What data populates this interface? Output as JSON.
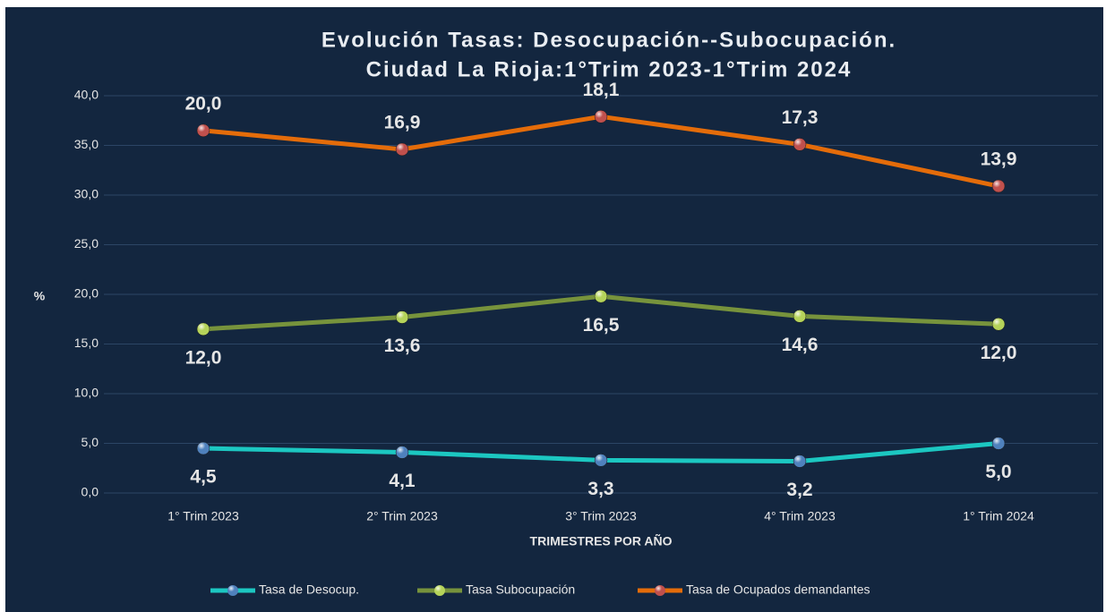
{
  "chart_data": {
    "type": "line",
    "stacked": true,
    "title": [
      "Evolución Tasas: Desocupación--Subocupación.",
      "Ciudad La Rioja:1°Trim 2023-1°Trim 2024"
    ],
    "y_label": "%",
    "x_label": "TRIMESTRES  POR AÑO",
    "categories": [
      "1° Trim 2023",
      "2° Trim 2023",
      "3° Trim 2023",
      "4° Trim 2023",
      "1° Trim 2024"
    ],
    "series": [
      {
        "name": "Tasa de Desocup.",
        "color": "#1cc7c1",
        "marker_color": "#4f81bd",
        "values": [
          4.5,
          4.1,
          3.3,
          3.2,
          5.0
        ],
        "value_labels": [
          "4,5",
          "4,1",
          "3,3",
          "3,2",
          "5,0"
        ]
      },
      {
        "name": "Tasa Subocupación",
        "color": "#77933c",
        "marker_color": "#b5d35a",
        "values": [
          12.0,
          13.6,
          16.5,
          14.6,
          12.0
        ],
        "value_labels": [
          "12,0",
          "13,6",
          "16,5",
          "14,6",
          "12,0"
        ]
      },
      {
        "name": "Tasa de Ocupados demandantes",
        "color": "#e46c0a",
        "marker_color": "#c0504d",
        "values": [
          20.0,
          16.9,
          18.1,
          17.3,
          13.9
        ],
        "value_labels": [
          "20,0",
          "16,9",
          "18,1",
          "17,3",
          "13,9"
        ]
      }
    ],
    "ylim": [
      0,
      40
    ],
    "yticks": [
      {
        "value": 0,
        "label": "0,0"
      },
      {
        "value": 5,
        "label": "5,0"
      },
      {
        "value": 10,
        "label": "10,0"
      },
      {
        "value": 15,
        "label": "15,0"
      },
      {
        "value": 20,
        "label": "20,0"
      },
      {
        "value": 25,
        "label": "25,0"
      },
      {
        "value": 30,
        "label": "30,0"
      },
      {
        "value": 35,
        "label": "35,0"
      },
      {
        "value": 40,
        "label": "40,0"
      }
    ],
    "grid": true,
    "legend": "bottom"
  }
}
